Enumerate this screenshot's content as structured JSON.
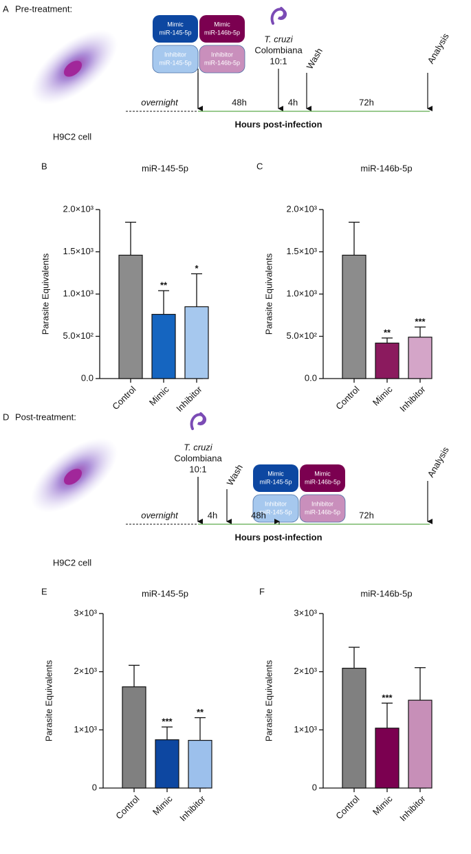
{
  "diagrams": [
    {
      "letter": "A",
      "heading": "Pre-treatment:",
      "cell_label": "H9C2 cell",
      "treatments": [
        {
          "line1": "Mimic",
          "line2": "miR-145-5p",
          "color": "#0d47a1"
        },
        {
          "line1": "Mimic",
          "line2": "miR-146b-5p",
          "color": "#7b0050"
        },
        {
          "line1": "Inhibitor",
          "line2": "miR-145-5p",
          "color": "#a6c8ee"
        },
        {
          "line1": "Inhibitor",
          "line2": "miR-146b-5p",
          "color": "#c98fbc"
        }
      ],
      "parasite": {
        "name": "T. cruzi",
        "strain": "Colombiana",
        "ratio": "10:1"
      },
      "wash": "Wash",
      "analysis": "Analysis",
      "start": "overnight",
      "durations": [
        "48h",
        "4h",
        "72h"
      ],
      "axis_label": "Hours post-infection"
    },
    {
      "letter": "D",
      "heading": "Post-treatment:",
      "cell_label": "H9C2 cell",
      "treatments": [
        {
          "line1": "Mimic",
          "line2": "miR-145-5p",
          "color": "#0d47a1"
        },
        {
          "line1": "Mimic",
          "line2": "miR-146b-5p",
          "color": "#7b0050"
        },
        {
          "line1": "Inhibitor",
          "line2": "miR-145-5p",
          "color": "#a6c8ee"
        },
        {
          "line1": "Inhibitor",
          "line2": "miR-146b-5p",
          "color": "#c98fbc"
        }
      ],
      "parasite": {
        "name": "T. cruzi",
        "strain": "Colombiana",
        "ratio": "10:1"
      },
      "wash": "Wash",
      "analysis": "Analysis",
      "start": "overnight",
      "durations": [
        "4h",
        "48h",
        "72h"
      ],
      "axis_label": "Hours post-infection"
    }
  ],
  "chart_data": [
    {
      "type": "bar",
      "panel": "B",
      "title": "miR-145-5p",
      "ylabel": "Parasite Equivalents",
      "categories": [
        "Control",
        "Mimic",
        "Inhibitor"
      ],
      "values": [
        1460,
        760,
        850
      ],
      "errors": [
        390,
        280,
        390
      ],
      "significance": [
        null,
        "**",
        "*"
      ],
      "colors": [
        "#8c8c8c",
        "#1565c0",
        "#a6c8ee"
      ],
      "ylim": [
        0,
        2000
      ],
      "yticks": [
        {
          "value": 0,
          "label": "0.0"
        },
        {
          "value": 500,
          "label": "5.0×10²"
        },
        {
          "value": 1000,
          "label": "1.0×10³"
        },
        {
          "value": 1500,
          "label": "1.5×10³"
        },
        {
          "value": 2000,
          "label": "2.0×10³"
        }
      ]
    },
    {
      "type": "bar",
      "panel": "C",
      "title": "miR-146b-5p",
      "ylabel": "Parasite Equivalents",
      "categories": [
        "Control",
        "Mimic",
        "Inhibitor"
      ],
      "values": [
        1460,
        420,
        490
      ],
      "errors": [
        390,
        60,
        120
      ],
      "significance": [
        null,
        "**",
        "***"
      ],
      "colors": [
        "#8c8c8c",
        "#8b1a5e",
        "#d4a5c8"
      ],
      "ylim": [
        0,
        2000
      ],
      "yticks": [
        {
          "value": 0,
          "label": "0.0"
        },
        {
          "value": 500,
          "label": "5.0×10²"
        },
        {
          "value": 1000,
          "label": "1.0×10³"
        },
        {
          "value": 1500,
          "label": "1.5×10³"
        },
        {
          "value": 2000,
          "label": "2.0×10³"
        }
      ]
    },
    {
      "type": "bar",
      "panel": "E",
      "title": "miR-145-5p",
      "ylabel": "Parasite Equivalents",
      "categories": [
        "Control",
        "Mimic",
        "Inhibitor"
      ],
      "values": [
        1740,
        830,
        820
      ],
      "errors": [
        370,
        220,
        390
      ],
      "significance": [
        null,
        "***",
        "**"
      ],
      "colors": [
        "#808080",
        "#0d47a1",
        "#9cc0ec"
      ],
      "ylim": [
        0,
        3000
      ],
      "yticks": [
        0,
        {
          "value": 1000,
          "label": "1×10³"
        },
        {
          "value": 2000,
          "label": "2×10³"
        },
        {
          "value": 3000,
          "label": "3×10³"
        }
      ]
    },
    {
      "type": "bar",
      "panel": "F",
      "title": "miR-146b-5p",
      "ylabel": "Parasite Equivalents",
      "categories": [
        "Control",
        "Mimic",
        "Inhibitor"
      ],
      "values": [
        2060,
        1030,
        1510
      ],
      "errors": [
        360,
        430,
        560
      ],
      "significance": [
        null,
        "***",
        null
      ],
      "colors": [
        "#808080",
        "#7b0050",
        "#c78fb8"
      ],
      "ylim": [
        0,
        3000
      ],
      "yticks": [
        0,
        {
          "value": 1000,
          "label": "1×10³"
        },
        {
          "value": 2000,
          "label": "2×10³"
        },
        {
          "value": 3000,
          "label": "3×10³"
        }
      ]
    }
  ]
}
